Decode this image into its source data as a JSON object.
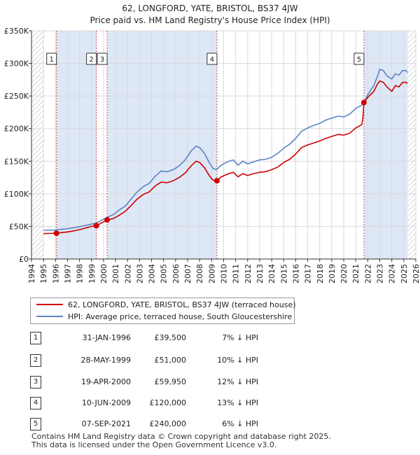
{
  "chart_data": {
    "type": "line",
    "title": "62, LONGFORD, YATE, BRISTOL, BS37 4JW",
    "subtitle": "Price paid vs. HM Land Registry's House Price Index (HPI)",
    "xlim": [
      1994,
      2026
    ],
    "ylim": [
      0,
      350000
    ],
    "y_ticks": [
      {
        "value": 0,
        "label": "£0"
      },
      {
        "value": 50000,
        "label": "£50K"
      },
      {
        "value": 100000,
        "label": "£100K"
      },
      {
        "value": 150000,
        "label": "£150K"
      },
      {
        "value": 200000,
        "label": "£200K"
      },
      {
        "value": 250000,
        "label": "£250K"
      },
      {
        "value": 300000,
        "label": "£300K"
      },
      {
        "value": 350000,
        "label": "£350K"
      }
    ],
    "x_ticks": [
      "1994",
      "1995",
      "1996",
      "1997",
      "1998",
      "1999",
      "2000",
      "2001",
      "2002",
      "2003",
      "2004",
      "2005",
      "2006",
      "2007",
      "2008",
      "2009",
      "2010",
      "2011",
      "2012",
      "2013",
      "2014",
      "2015",
      "2016",
      "2017",
      "2018",
      "2019",
      "2020",
      "2021",
      "2022",
      "2023",
      "2024",
      "2025",
      "2026"
    ],
    "grid": true,
    "hatched_ranges": [
      [
        1994,
        1995.0
      ],
      [
        2025.3,
        2026
      ]
    ],
    "shaded_ranges": [
      [
        1996.08,
        1999.4
      ],
      [
        2000.3,
        2009.44
      ],
      [
        2021.68,
        2025.3
      ]
    ],
    "series": [
      {
        "name": "HPI: Average price, terraced house, South Gloucestershire",
        "color": "#5b84c4",
        "points": [
          [
            1995.0,
            44000
          ],
          [
            1995.5,
            44000
          ],
          [
            1996.0,
            44500
          ],
          [
            1996.5,
            45500
          ],
          [
            1997.0,
            46500
          ],
          [
            1997.5,
            48000
          ],
          [
            1998.0,
            49500
          ],
          [
            1998.5,
            51500
          ],
          [
            1999.0,
            53500
          ],
          [
            1999.4,
            55000
          ],
          [
            1999.8,
            59000
          ],
          [
            2000.3,
            64000
          ],
          [
            2000.8,
            68000
          ],
          [
            2001.3,
            75000
          ],
          [
            2001.8,
            81000
          ],
          [
            2002.3,
            92000
          ],
          [
            2002.8,
            103000
          ],
          [
            2003.3,
            111000
          ],
          [
            2003.8,
            116000
          ],
          [
            2004.3,
            127000
          ],
          [
            2004.8,
            135000
          ],
          [
            2005.3,
            134000
          ],
          [
            2005.8,
            137000
          ],
          [
            2006.3,
            143000
          ],
          [
            2006.8,
            152000
          ],
          [
            2007.3,
            166000
          ],
          [
            2007.7,
            173000
          ],
          [
            2008.0,
            171000
          ],
          [
            2008.4,
            162000
          ],
          [
            2008.8,
            148000
          ],
          [
            2009.1,
            139000
          ],
          [
            2009.4,
            137000
          ],
          [
            2009.8,
            144000
          ],
          [
            2010.3,
            149000
          ],
          [
            2010.8,
            152000
          ],
          [
            2011.2,
            144000
          ],
          [
            2011.6,
            150000
          ],
          [
            2012.0,
            146000
          ],
          [
            2012.5,
            149000
          ],
          [
            2013.0,
            152000
          ],
          [
            2013.5,
            153000
          ],
          [
            2014.0,
            156000
          ],
          [
            2014.5,
            162000
          ],
          [
            2015.0,
            170000
          ],
          [
            2015.5,
            176000
          ],
          [
            2016.0,
            185000
          ],
          [
            2016.5,
            196000
          ],
          [
            2017.0,
            201000
          ],
          [
            2017.5,
            205000
          ],
          [
            2018.0,
            208000
          ],
          [
            2018.5,
            213000
          ],
          [
            2019.0,
            216000
          ],
          [
            2019.5,
            219000
          ],
          [
            2020.0,
            218000
          ],
          [
            2020.5,
            222000
          ],
          [
            2021.0,
            231000
          ],
          [
            2021.5,
            236000
          ],
          [
            2021.7,
            240000
          ],
          [
            2022.0,
            252000
          ],
          [
            2022.5,
            266000
          ],
          [
            2022.8,
            280000
          ],
          [
            2023.0,
            291000
          ],
          [
            2023.3,
            289000
          ],
          [
            2023.6,
            281000
          ],
          [
            2024.0,
            276000
          ],
          [
            2024.3,
            284000
          ],
          [
            2024.6,
            282000
          ],
          [
            2024.9,
            289000
          ],
          [
            2025.2,
            289000
          ],
          [
            2025.3,
            286000
          ]
        ]
      },
      {
        "name": "62, LONGFORD, YATE, BRISTOL, BS37 4JW (terraced house)",
        "color": "#cc0000",
        "points": [
          [
            1995.0,
            39000
          ],
          [
            1995.5,
            39200
          ],
          [
            1996.08,
            39500
          ],
          [
            1996.5,
            40500
          ],
          [
            1997.0,
            41500
          ],
          [
            1997.5,
            43000
          ],
          [
            1998.0,
            45000
          ],
          [
            1998.5,
            47500
          ],
          [
            1999.0,
            50000
          ],
          [
            1999.4,
            51000
          ],
          [
            1999.8,
            55000
          ],
          [
            2000.3,
            59950
          ],
          [
            2000.8,
            62000
          ],
          [
            2001.3,
            67000
          ],
          [
            2001.8,
            73000
          ],
          [
            2002.3,
            82000
          ],
          [
            2002.8,
            92000
          ],
          [
            2003.3,
            99000
          ],
          [
            2003.8,
            103000
          ],
          [
            2004.3,
            112000
          ],
          [
            2004.8,
            118000
          ],
          [
            2005.3,
            117000
          ],
          [
            2005.8,
            120000
          ],
          [
            2006.3,
            125000
          ],
          [
            2006.8,
            132000
          ],
          [
            2007.3,
            143000
          ],
          [
            2007.7,
            150000
          ],
          [
            2008.0,
            148000
          ],
          [
            2008.4,
            140000
          ],
          [
            2008.8,
            128000
          ],
          [
            2009.1,
            121000
          ],
          [
            2009.44,
            120000
          ],
          [
            2009.8,
            126000
          ],
          [
            2010.3,
            130000
          ],
          [
            2010.8,
            133000
          ],
          [
            2011.2,
            126000
          ],
          [
            2011.6,
            131000
          ],
          [
            2012.0,
            128000
          ],
          [
            2012.5,
            131000
          ],
          [
            2013.0,
            133000
          ],
          [
            2013.5,
            134000
          ],
          [
            2014.0,
            137000
          ],
          [
            2014.5,
            141000
          ],
          [
            2015.0,
            148000
          ],
          [
            2015.5,
            153000
          ],
          [
            2016.0,
            161000
          ],
          [
            2016.5,
            171000
          ],
          [
            2017.0,
            175000
          ],
          [
            2017.5,
            178000
          ],
          [
            2018.0,
            181000
          ],
          [
            2018.5,
            185000
          ],
          [
            2019.0,
            188000
          ],
          [
            2019.5,
            191000
          ],
          [
            2020.0,
            190000
          ],
          [
            2020.5,
            193000
          ],
          [
            2021.0,
            201000
          ],
          [
            2021.5,
            206000
          ],
          [
            2021.6,
            217000
          ],
          [
            2021.68,
            240000
          ],
          [
            2022.0,
            248000
          ],
          [
            2022.5,
            257000
          ],
          [
            2022.8,
            268000
          ],
          [
            2023.0,
            273000
          ],
          [
            2023.3,
            271000
          ],
          [
            2023.6,
            264000
          ],
          [
            2024.0,
            257000
          ],
          [
            2024.3,
            266000
          ],
          [
            2024.6,
            264000
          ],
          [
            2024.9,
            271000
          ],
          [
            2025.2,
            271000
          ],
          [
            2025.3,
            269000
          ]
        ]
      }
    ],
    "sales": [
      {
        "label": "1",
        "x": 1996.08,
        "price": 39500
      },
      {
        "label": "2",
        "x": 1999.4,
        "price": 51000
      },
      {
        "label": "3",
        "x": 2000.3,
        "price": 59950
      },
      {
        "label": "4",
        "x": 2009.44,
        "price": 120000
      },
      {
        "label": "5",
        "x": 2021.68,
        "price": 240000
      }
    ],
    "colors": {
      "hpi": "#5b84c4",
      "price": "#cc0000",
      "shade": "#dde7f5",
      "vline": "#d84d4d"
    }
  },
  "legend": {
    "price_label": "62, LONGFORD, YATE, BRISTOL, BS37 4JW (terraced house)",
    "hpi_label": "HPI: Average price, terraced house, South Gloucestershire"
  },
  "transactions": [
    {
      "num": "1",
      "date": "31-JAN-1996",
      "price": "£39,500",
      "hpi": "7% ↓ HPI"
    },
    {
      "num": "2",
      "date": "28-MAY-1999",
      "price": "£51,000",
      "hpi": "10% ↓ HPI"
    },
    {
      "num": "3",
      "date": "19-APR-2000",
      "price": "£59,950",
      "hpi": "12% ↓ HPI"
    },
    {
      "num": "4",
      "date": "10-JUN-2009",
      "price": "£120,000",
      "hpi": "13% ↓ HPI"
    },
    {
      "num": "5",
      "date": "07-SEP-2021",
      "price": "£240,000",
      "hpi": "6% ↓ HPI"
    }
  ],
  "footer": {
    "line1": "Contains HM Land Registry data © Crown copyright and database right 2025.",
    "line2": "This data is licensed under the Open Government Licence v3.0."
  }
}
